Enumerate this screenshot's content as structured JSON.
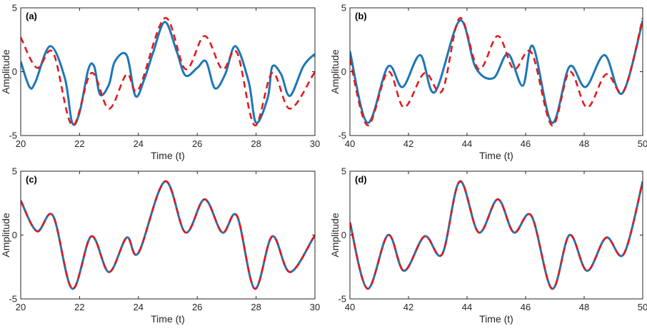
{
  "chart_data": [
    {
      "type": "line",
      "panel_label": "(a)",
      "xlabel": "Time (t)",
      "ylabel": "Amplitude",
      "xlim": [
        20,
        30
      ],
      "ylim": [
        -5,
        5
      ],
      "xticks": [
        "20",
        "22",
        "24",
        "26",
        "28",
        "30"
      ],
      "yticks": [
        "-5",
        "0",
        "5"
      ],
      "grid": false,
      "series": [
        {
          "style": "solid",
          "color": "#1f77b4",
          "x": [
            20,
            20.3,
            20.5,
            21.0,
            21.5,
            21.75,
            22.0,
            22.3,
            22.5,
            22.7,
            23.0,
            23.2,
            23.6,
            23.9,
            24.2,
            24.5,
            24.9,
            25.3,
            25.6,
            26.0,
            26.3,
            26.6,
            26.95,
            27.3,
            27.75,
            28.0,
            28.4,
            28.55,
            28.85,
            29.15,
            29.6,
            29.95,
            30
          ],
          "y": [
            0.8,
            -1.2,
            -0.8,
            2.0,
            -0.5,
            -4.0,
            -3.2,
            0.2,
            0.4,
            -1.8,
            -1.0,
            0.8,
            1.3,
            -1.9,
            -0.6,
            1.5,
            3.9,
            1.6,
            -0.3,
            0.3,
            0.8,
            -1.3,
            -0.2,
            2.0,
            -0.8,
            -4.0,
            -2.0,
            0.4,
            -0.2,
            -1.9,
            0.4,
            1.3,
            1.2
          ]
        },
        {
          "style": "dashed",
          "color": "#e41a1c",
          "x": [
            20,
            20.55,
            21.1,
            21.75,
            22.4,
            23.0,
            23.6,
            24.0,
            24.9,
            25.6,
            26.25,
            26.85,
            27.35,
            27.95,
            28.55,
            29.15,
            29.95,
            30
          ],
          "y": [
            2.7,
            0.3,
            1.5,
            -4.2,
            -0.1,
            -2.9,
            -0.2,
            -1.4,
            4.2,
            0.2,
            2.8,
            0.2,
            1.5,
            -4.2,
            -0.1,
            -2.9,
            -0.2,
            -0.1
          ]
        }
      ]
    },
    {
      "type": "line",
      "panel_label": "(b)",
      "xlabel": "Time (t)",
      "ylabel": "Amplitude",
      "xlim": [
        40,
        50
      ],
      "ylim": [
        -5,
        5
      ],
      "xticks": [
        "40",
        "42",
        "44",
        "46",
        "48",
        "50"
      ],
      "yticks": [
        "-5",
        "0",
        "5"
      ],
      "grid": false,
      "series": [
        {
          "style": "solid",
          "color": "#1f77b4",
          "x": [
            40,
            40.6,
            41.3,
            41.8,
            42.4,
            42.9,
            43.75,
            44.3,
            44.9,
            45.4,
            45.9,
            46.25,
            46.9,
            47.5,
            48.05,
            48.7,
            49.3,
            50
          ],
          "y": [
            1.6,
            -4.0,
            0.4,
            -1.2,
            1.3,
            -1.6,
            4.0,
            0.3,
            -0.5,
            1.4,
            -1.1,
            2.0,
            -4.0,
            0.4,
            -1.2,
            1.3,
            -1.7,
            4.0
          ]
        },
        {
          "style": "dashed",
          "color": "#e41a1c",
          "x": [
            40,
            40.6,
            41.3,
            41.85,
            42.55,
            43.15,
            43.75,
            44.4,
            45.05,
            45.6,
            46.2,
            46.9,
            47.5,
            48.1,
            48.75,
            49.35,
            50
          ],
          "y": [
            1.0,
            -4.2,
            0.0,
            -2.8,
            -0.1,
            -1.5,
            4.2,
            0.2,
            2.8,
            0.2,
            1.5,
            -4.2,
            0.0,
            -2.8,
            -0.2,
            -1.5,
            4.2
          ]
        }
      ]
    },
    {
      "type": "line",
      "panel_label": "(c)",
      "xlabel": "Time (t)",
      "ylabel": "Amplitude",
      "xlim": [
        20,
        30
      ],
      "ylim": [
        -5,
        5
      ],
      "xticks": [
        "20",
        "22",
        "24",
        "26",
        "28",
        "30"
      ],
      "yticks": [
        "-5",
        "0",
        "5"
      ],
      "grid": false,
      "series": [
        {
          "style": "solid",
          "color": "#1f77b4",
          "x": [
            20,
            20.55,
            21.1,
            21.75,
            22.4,
            23.0,
            23.6,
            24.0,
            24.9,
            25.6,
            26.25,
            26.85,
            27.35,
            27.95,
            28.55,
            29.15,
            29.95,
            30
          ],
          "y": [
            2.7,
            0.3,
            1.5,
            -4.2,
            -0.1,
            -2.9,
            -0.2,
            -1.4,
            4.2,
            0.2,
            2.8,
            0.2,
            1.5,
            -4.2,
            -0.1,
            -2.9,
            -0.2,
            -0.1
          ]
        },
        {
          "style": "dashed",
          "color": "#e41a1c",
          "x": [
            20,
            20.55,
            21.1,
            21.75,
            22.4,
            23.0,
            23.6,
            24.0,
            24.9,
            25.6,
            26.25,
            26.85,
            27.35,
            27.95,
            28.55,
            29.15,
            29.95,
            30
          ],
          "y": [
            2.7,
            0.3,
            1.5,
            -4.2,
            -0.1,
            -2.9,
            -0.2,
            -1.4,
            4.2,
            0.2,
            2.8,
            0.2,
            1.5,
            -4.2,
            -0.1,
            -2.9,
            -0.2,
            -0.1
          ]
        }
      ]
    },
    {
      "type": "line",
      "panel_label": "(d)",
      "xlabel": "Time (t)",
      "ylabel": "Amplitude",
      "xlim": [
        40,
        50
      ],
      "ylim": [
        -5,
        5
      ],
      "xticks": [
        "40",
        "42",
        "44",
        "46",
        "48",
        "50"
      ],
      "yticks": [
        "-5",
        "0",
        "5"
      ],
      "grid": false,
      "series": [
        {
          "style": "solid",
          "color": "#1f77b4",
          "x": [
            40,
            40.6,
            41.3,
            41.85,
            42.55,
            43.15,
            43.75,
            44.4,
            45.05,
            45.6,
            46.2,
            46.9,
            47.5,
            48.1,
            48.75,
            49.35,
            50
          ],
          "y": [
            1.0,
            -4.2,
            0.0,
            -2.8,
            -0.1,
            -1.5,
            4.2,
            0.2,
            2.8,
            0.2,
            1.5,
            -4.2,
            0.0,
            -2.8,
            -0.2,
            -1.5,
            4.2
          ]
        },
        {
          "style": "dashed",
          "color": "#e41a1c",
          "x": [
            40,
            40.6,
            41.3,
            41.85,
            42.55,
            43.15,
            43.75,
            44.4,
            45.05,
            45.6,
            46.2,
            46.9,
            47.5,
            48.1,
            48.75,
            49.35,
            50
          ],
          "y": [
            1.0,
            -4.2,
            0.0,
            -2.8,
            -0.1,
            -1.5,
            4.2,
            0.2,
            2.8,
            0.2,
            1.5,
            -4.2,
            0.0,
            -2.8,
            -0.2,
            -1.5,
            4.2
          ]
        }
      ]
    }
  ]
}
